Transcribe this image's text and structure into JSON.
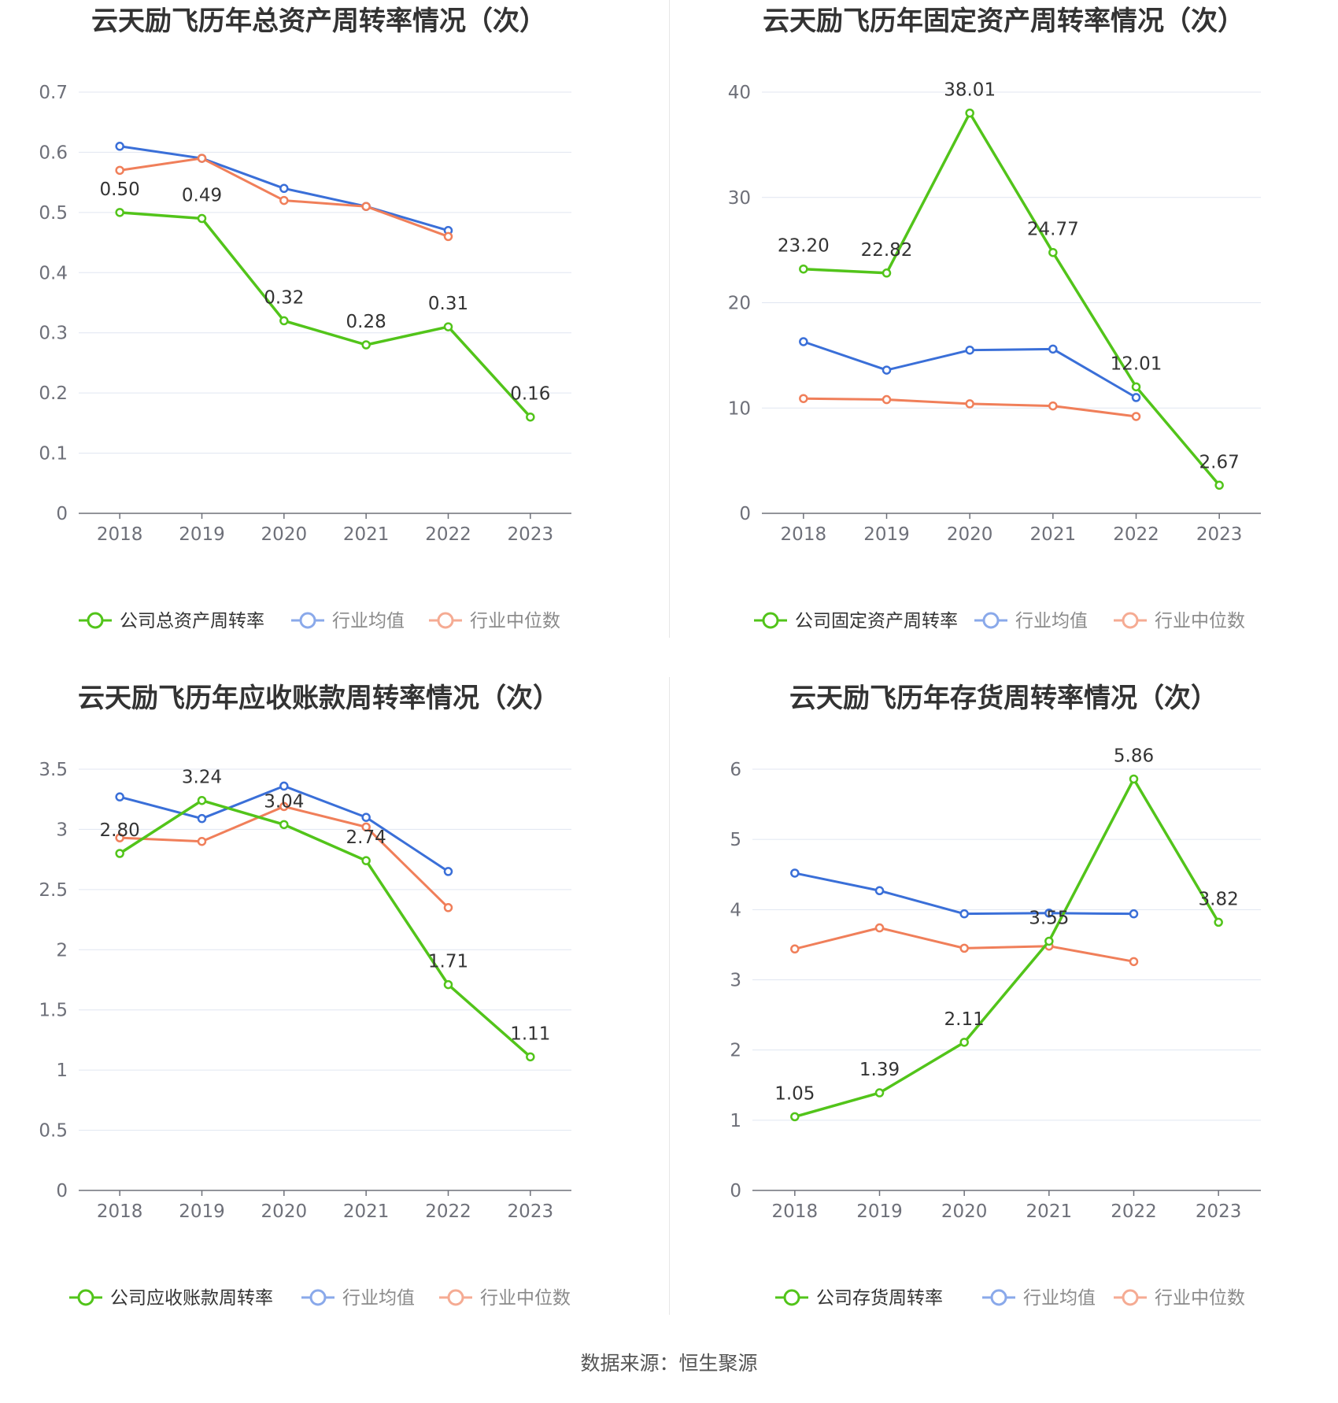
{
  "source_text": "数据来源：恒生聚源",
  "chart_data": [
    {
      "type": "line",
      "title": "云天励飞历年总资产周转率情况（次）",
      "categories": [
        "2018",
        "2019",
        "2020",
        "2021",
        "2022",
        "2023"
      ],
      "ylim": [
        0,
        0.7
      ],
      "yticks": [
        "0",
        "0.1",
        "0.2",
        "0.3",
        "0.4",
        "0.5",
        "0.6",
        "0.7"
      ],
      "grid": true,
      "legend_position": "bottom",
      "series": [
        {
          "name": "公司总资产周转率",
          "color": "#52c41a",
          "values": [
            0.5,
            0.49,
            0.32,
            0.28,
            0.31,
            0.16
          ],
          "labels": [
            "0.50",
            "0.49",
            "0.32",
            "0.28",
            "0.31",
            "0.16"
          ]
        },
        {
          "name": "行业均值",
          "color": "#3a6fd8",
          "values": [
            0.61,
            0.59,
            0.54,
            0.51,
            0.47,
            null
          ]
        },
        {
          "name": "行业中位数",
          "color": "#f07f5a",
          "values": [
            0.57,
            0.59,
            0.52,
            0.51,
            0.46,
            null
          ]
        }
      ]
    },
    {
      "type": "line",
      "title": "云天励飞历年固定资产周转率情况（次）",
      "categories": [
        "2018",
        "2019",
        "2020",
        "2021",
        "2022",
        "2023"
      ],
      "ylim": [
        0,
        40
      ],
      "yticks": [
        "0",
        "10",
        "20",
        "30",
        "40"
      ],
      "grid": true,
      "legend_position": "bottom",
      "series": [
        {
          "name": "公司固定资产周转率",
          "color": "#52c41a",
          "values": [
            23.2,
            22.82,
            38.01,
            24.77,
            12.01,
            2.67
          ],
          "labels": [
            "23.20",
            "22.82",
            "38.01",
            "24.77",
            "12.01",
            "2.67"
          ]
        },
        {
          "name": "行业均值",
          "color": "#3a6fd8",
          "values": [
            16.3,
            13.6,
            15.5,
            15.6,
            11.0,
            null
          ]
        },
        {
          "name": "行业中位数",
          "color": "#f07f5a",
          "values": [
            10.9,
            10.8,
            10.4,
            10.2,
            9.2,
            null
          ]
        }
      ]
    },
    {
      "type": "line",
      "title": "云天励飞历年应收账款周转率情况（次）",
      "categories": [
        "2018",
        "2019",
        "2020",
        "2021",
        "2022",
        "2023"
      ],
      "ylim": [
        0,
        3.5
      ],
      "yticks": [
        "0",
        "0.5",
        "1",
        "1.5",
        "2",
        "2.5",
        "3",
        "3.5"
      ],
      "grid": true,
      "legend_position": "bottom",
      "series": [
        {
          "name": "公司应收账款周转率",
          "color": "#52c41a",
          "values": [
            2.8,
            3.24,
            3.04,
            2.74,
            1.71,
            1.11
          ],
          "labels": [
            "2.80",
            "3.24",
            "3.04",
            "2.74",
            "1.71",
            "1.11"
          ]
        },
        {
          "name": "行业均值",
          "color": "#3a6fd8",
          "values": [
            3.27,
            3.09,
            3.36,
            3.1,
            2.65,
            null
          ]
        },
        {
          "name": "行业中位数",
          "color": "#f07f5a",
          "values": [
            2.93,
            2.9,
            3.19,
            3.02,
            2.35,
            null
          ]
        }
      ]
    },
    {
      "type": "line",
      "title": "云天励飞历年存货周转率情况（次）",
      "categories": [
        "2018",
        "2019",
        "2020",
        "2021",
        "2022",
        "2023"
      ],
      "ylim": [
        0,
        6
      ],
      "yticks": [
        "0",
        "1",
        "2",
        "3",
        "4",
        "5",
        "6"
      ],
      "grid": true,
      "legend_position": "bottom",
      "series": [
        {
          "name": "公司存货周转率",
          "color": "#52c41a",
          "values": [
            1.05,
            1.39,
            2.11,
            3.55,
            5.86,
            3.82
          ],
          "labels": [
            "1.05",
            "1.39",
            "2.11",
            "3.55",
            "5.86",
            "3.82"
          ]
        },
        {
          "name": "行业均值",
          "color": "#3a6fd8",
          "values": [
            4.52,
            4.27,
            3.94,
            3.95,
            3.94,
            null
          ]
        },
        {
          "name": "行业中位数",
          "color": "#f07f5a",
          "values": [
            3.44,
            3.74,
            3.45,
            3.48,
            3.26,
            null
          ]
        }
      ]
    }
  ]
}
